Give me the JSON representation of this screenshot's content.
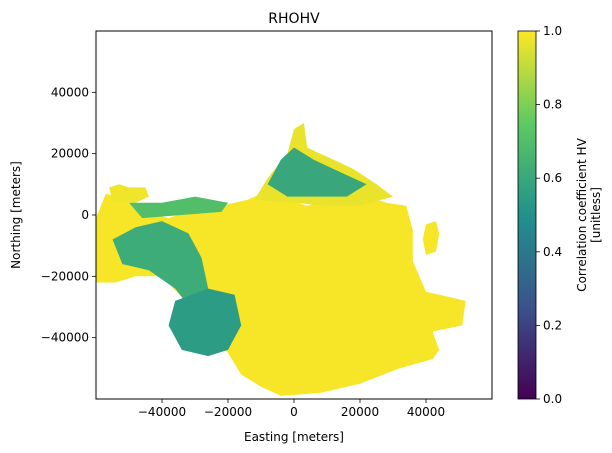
{
  "chart_data": {
    "type": "heatmap",
    "title": "RHOHV",
    "xlabel": "Easting [meters]",
    "ylabel": "Northing [meters]",
    "xlim": [
      -60000,
      60000
    ],
    "ylim": [
      -60000,
      60000
    ],
    "x_ticks": [
      -40000,
      -20000,
      0,
      20000,
      40000
    ],
    "x_tick_labels": [
      "−40000",
      "−20000",
      "0",
      "20000",
      "40000"
    ],
    "y_ticks": [
      40000,
      20000,
      0,
      -20000,
      -40000
    ],
    "y_tick_labels": [
      "40000",
      "20000",
      "0",
      "−20000",
      "−40000"
    ],
    "grid": false,
    "colorbar": {
      "label_line1": "Correlation coefficient HV",
      "label_line2": "[unitless]",
      "range": [
        0.0,
        1.0
      ],
      "ticks": [
        0.0,
        0.2,
        0.4,
        0.6,
        0.8,
        1.0
      ],
      "tick_labels": [
        "0.0",
        "0.2",
        "0.4",
        "0.6",
        "0.8",
        "1.0"
      ],
      "colormap": "viridis",
      "colors": [
        "#440154",
        "#3b528b",
        "#21918c",
        "#5ec962",
        "#fde725"
      ]
    },
    "regions": [
      {
        "name": "main-echo",
        "value": 0.99,
        "polygon": [
          [
            -60000,
            -1000
          ],
          [
            -57000,
            7000
          ],
          [
            -52000,
            5000
          ],
          [
            -45000,
            1000
          ],
          [
            -38000,
            -1000
          ],
          [
            -30000,
            2000
          ],
          [
            -22000,
            3000
          ],
          [
            -14000,
            5000
          ],
          [
            -8000,
            8000
          ],
          [
            -2000,
            5000
          ],
          [
            4000,
            3000
          ],
          [
            10000,
            5000
          ],
          [
            16000,
            7000
          ],
          [
            22000,
            6000
          ],
          [
            28000,
            4000
          ],
          [
            34000,
            3000
          ],
          [
            36000,
            -5000
          ],
          [
            36000,
            -15000
          ],
          [
            40000,
            -25000
          ],
          [
            48000,
            -27000
          ],
          [
            52000,
            -28000
          ],
          [
            51000,
            -36000
          ],
          [
            42000,
            -38000
          ],
          [
            44000,
            -44000
          ],
          [
            42000,
            -47000
          ],
          [
            32000,
            -50000
          ],
          [
            20000,
            -55000
          ],
          [
            8000,
            -58000
          ],
          [
            -4000,
            -59000
          ],
          [
            -10000,
            -56000
          ],
          [
            -16000,
            -52000
          ],
          [
            -20000,
            -45000
          ],
          [
            -28000,
            -36000
          ],
          [
            -33000,
            -28000
          ],
          [
            -40000,
            -20000
          ],
          [
            -48000,
            -20000
          ],
          [
            -54000,
            -22000
          ],
          [
            -60000,
            -22000
          ]
        ]
      },
      {
        "name": "east-blob",
        "value": 0.99,
        "polygon": [
          [
            40000,
            -3000
          ],
          [
            43000,
            -2000
          ],
          [
            44000,
            -6000
          ],
          [
            43000,
            -12000
          ],
          [
            40000,
            -13000
          ],
          [
            39000,
            -8000
          ]
        ]
      },
      {
        "name": "nw-blob",
        "value": 0.98,
        "polygon": [
          [
            -56000,
            9000
          ],
          [
            -53000,
            10000
          ],
          [
            -50000,
            9000
          ],
          [
            -45000,
            9000
          ],
          [
            -44000,
            6000
          ],
          [
            -48000,
            4000
          ],
          [
            -55000,
            4000
          ]
        ]
      },
      {
        "name": "north-fan",
        "value": 0.97,
        "polygon": [
          [
            -12000,
            5000
          ],
          [
            -8000,
            12000
          ],
          [
            -5000,
            16000
          ],
          [
            -2000,
            20000
          ],
          [
            0,
            28000
          ],
          [
            3000,
            30000
          ],
          [
            4000,
            22000
          ],
          [
            8000,
            20000
          ],
          [
            12000,
            18000
          ],
          [
            18000,
            15000
          ],
          [
            25000,
            10000
          ],
          [
            30000,
            6000
          ],
          [
            20000,
            3000
          ],
          [
            10000,
            3000
          ],
          [
            0,
            4000
          ]
        ]
      },
      {
        "name": "west-mixed",
        "value": 0.62,
        "polygon": [
          [
            -55000,
            -8000
          ],
          [
            -48000,
            -4000
          ],
          [
            -40000,
            -2000
          ],
          [
            -32000,
            -6000
          ],
          [
            -28000,
            -14000
          ],
          [
            -26000,
            -24000
          ],
          [
            -30000,
            -32000
          ],
          [
            -36000,
            -24000
          ],
          [
            -44000,
            -18000
          ],
          [
            -52000,
            -16000
          ]
        ]
      },
      {
        "name": "sw-speckle",
        "value": 0.55,
        "polygon": [
          [
            -36000,
            -28000
          ],
          [
            -26000,
            -24000
          ],
          [
            -18000,
            -26000
          ],
          [
            -16000,
            -36000
          ],
          [
            -20000,
            -44000
          ],
          [
            -26000,
            -46000
          ],
          [
            -34000,
            -44000
          ],
          [
            -38000,
            -36000
          ]
        ]
      },
      {
        "name": "north-mixed",
        "value": 0.6,
        "polygon": [
          [
            -8000,
            10000
          ],
          [
            -4000,
            18000
          ],
          [
            0,
            22000
          ],
          [
            6000,
            18000
          ],
          [
            14000,
            14000
          ],
          [
            22000,
            10000
          ],
          [
            16000,
            6000
          ],
          [
            6000,
            6000
          ],
          [
            -2000,
            6000
          ]
        ]
      },
      {
        "name": "ring-fringe",
        "value": 0.7,
        "polygon": [
          [
            -50000,
            4000
          ],
          [
            -40000,
            4000
          ],
          [
            -30000,
            6000
          ],
          [
            -20000,
            4000
          ],
          [
            -22000,
            1000
          ],
          [
            -34000,
            0
          ],
          [
            -46000,
            -1000
          ]
        ]
      }
    ]
  }
}
